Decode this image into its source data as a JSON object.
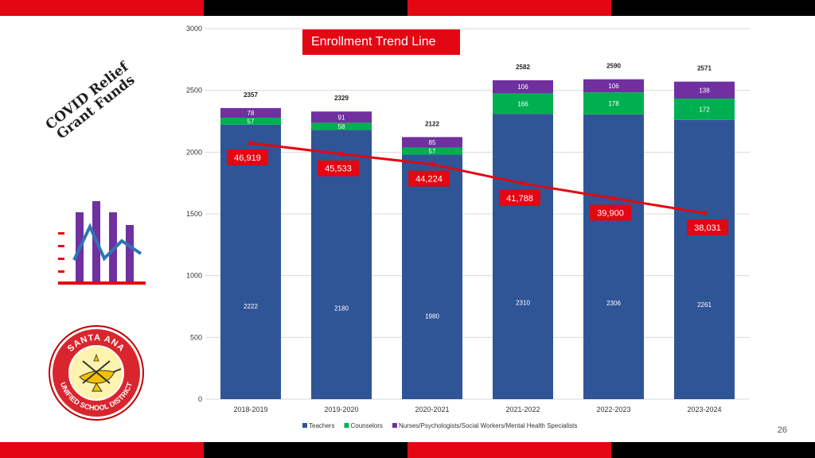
{
  "slide": {
    "title": "COVID Relief\nGrant Funds",
    "page_number": "26",
    "band_colors": [
      "#e30613",
      "#000000"
    ]
  },
  "seal": {
    "text_top": "SANTA ANA",
    "text_bottom": "UNIFIED SCHOOL DISTRICT"
  },
  "icons": {
    "chart_icon": "bar-line-chart-icon",
    "seal_icon": "district-seal-icon"
  },
  "chart_data": {
    "type": "bar",
    "stacked": true,
    "categories": [
      "2018-2019",
      "2019-2020",
      "2020-2021",
      "2021-2022",
      "2022-2023",
      "2023-2024"
    ],
    "ylim": [
      0,
      3000
    ],
    "yticks": [
      0,
      500,
      1000,
      1500,
      2000,
      2500,
      3000
    ],
    "grid": true,
    "legend_position": "bottom",
    "series": [
      {
        "name": "Teachers",
        "color": "#2f5597",
        "values": [
          2222,
          2180,
          1980,
          2310,
          2306,
          2261
        ]
      },
      {
        "name": "Counselors",
        "color": "#00b050",
        "values": [
          57,
          58,
          57,
          166,
          178,
          172
        ]
      },
      {
        "name": "Nurses/Psychologists/Social Workers/Mental Health Specialists",
        "color": "#7030a0",
        "values": [
          78,
          91,
          85,
          106,
          106,
          138
        ]
      }
    ],
    "totals": [
      2357,
      2329,
      2122,
      2582,
      2590,
      2571
    ],
    "trend": {
      "title": "Enrollment Trend Line",
      "color": "#e30613",
      "labels": [
        "46,919",
        "45,533",
        "44,224",
        "41,788",
        "39,900",
        "38,031"
      ],
      "values": [
        46919,
        45533,
        44224,
        41788,
        39900,
        38031
      ]
    }
  }
}
